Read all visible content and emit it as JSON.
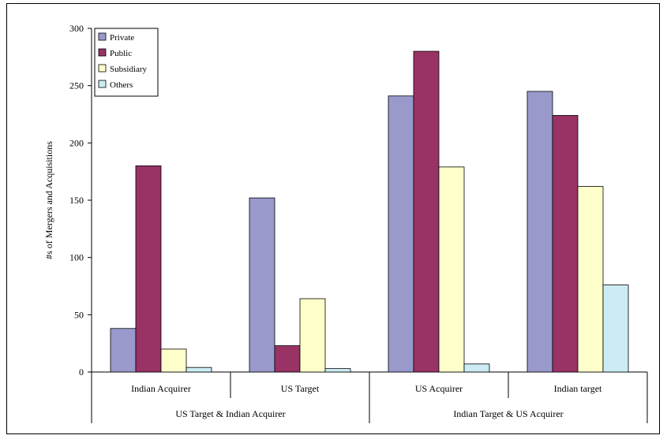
{
  "chart_data": {
    "type": "bar",
    "ylabel": "#s of Mergers and Acquisitions",
    "ylim": [
      0,
      300
    ],
    "yticks": [
      0,
      50,
      100,
      150,
      200,
      250,
      300
    ],
    "categories": [
      "Indian Acquirer",
      "US Target",
      "US Acquirer",
      "Indian target"
    ],
    "groups": [
      {
        "label": "US Target & Indian Acquirer",
        "categories": [
          "Indian Acquirer",
          "US Target"
        ]
      },
      {
        "label": "Indian Target & US Acquirer",
        "categories": [
          "US Acquirer",
          "Indian target"
        ]
      }
    ],
    "series": [
      {
        "name": "Private",
        "color": "#9999cc",
        "values": [
          38,
          152,
          241,
          245
        ]
      },
      {
        "name": "Public",
        "color": "#993366",
        "values": [
          180,
          23,
          280,
          224
        ]
      },
      {
        "name": "Subsidiary",
        "color": "#ffffcc",
        "values": [
          20,
          64,
          179,
          162
        ]
      },
      {
        "name": "Others",
        "color": "#ccecf4",
        "values": [
          4,
          3,
          7,
          76
        ]
      }
    ],
    "legend": "top-left",
    "grid": false
  }
}
